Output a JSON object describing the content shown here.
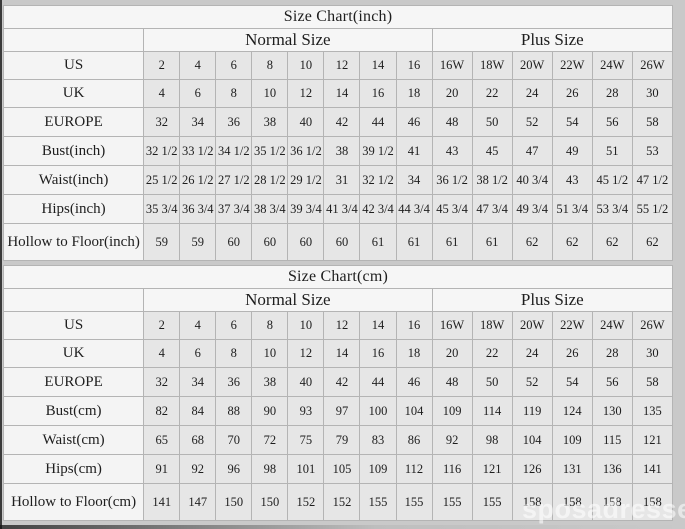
{
  "page": {
    "background": "#c9c9c9",
    "table_colors": {
      "header_bg": "#f6f6f6",
      "label_bg": "#f4f4f4",
      "value_bg": "#e6e6e6",
      "border": "#b4b4b4",
      "text": "#1e1e1e"
    },
    "watermark": "sposadresses"
  },
  "chart_data": [
    {
      "type": "table",
      "title": "Size Chart(inch)",
      "group_headers": [
        {
          "label": "Normal Size",
          "span": 8
        },
        {
          "label": "Plus Size",
          "span": 6
        }
      ],
      "rows": [
        {
          "label": "US",
          "values": [
            "2",
            "4",
            "6",
            "8",
            "10",
            "12",
            "14",
            "16",
            "16W",
            "18W",
            "20W",
            "22W",
            "24W",
            "26W"
          ]
        },
        {
          "label": "UK",
          "values": [
            "4",
            "6",
            "8",
            "10",
            "12",
            "14",
            "16",
            "18",
            "20",
            "22",
            "24",
            "26",
            "28",
            "30"
          ]
        },
        {
          "label": "EUROPE",
          "values": [
            "32",
            "34",
            "36",
            "38",
            "40",
            "42",
            "44",
            "46",
            "48",
            "50",
            "52",
            "54",
            "56",
            "58"
          ]
        },
        {
          "label": "Bust(inch)",
          "values": [
            "32 1/2",
            "33 1/2",
            "34 1/2",
            "35 1/2",
            "36 1/2",
            "38",
            "39 1/2",
            "41",
            "43",
            "45",
            "47",
            "49",
            "51",
            "53"
          ]
        },
        {
          "label": "Waist(inch)",
          "values": [
            "25 1/2",
            "26 1/2",
            "27 1/2",
            "28 1/2",
            "29 1/2",
            "31",
            "32 1/2",
            "34",
            "36 1/2",
            "38 1/2",
            "40 3/4",
            "43",
            "45 1/2",
            "47 1/2"
          ]
        },
        {
          "label": "Hips(inch)",
          "values": [
            "35 3/4",
            "36 3/4",
            "37 3/4",
            "38 3/4",
            "39 3/4",
            "41 3/4",
            "42 3/4",
            "44 3/4",
            "45 3/4",
            "47 3/4",
            "49 3/4",
            "51 3/4",
            "53 3/4",
            "55 1/2"
          ]
        },
        {
          "label": "Hollow to Floor(inch)",
          "values": [
            "59",
            "59",
            "60",
            "60",
            "60",
            "60",
            "61",
            "61",
            "61",
            "61",
            "62",
            "62",
            "62",
            "62"
          ]
        }
      ]
    },
    {
      "type": "table",
      "title": "Size Chart(cm)",
      "group_headers": [
        {
          "label": "Normal Size",
          "span": 8
        },
        {
          "label": "Plus Size",
          "span": 6
        }
      ],
      "rows": [
        {
          "label": "US",
          "values": [
            "2",
            "4",
            "6",
            "8",
            "10",
            "12",
            "14",
            "16",
            "16W",
            "18W",
            "20W",
            "22W",
            "24W",
            "26W"
          ]
        },
        {
          "label": "UK",
          "values": [
            "4",
            "6",
            "8",
            "10",
            "12",
            "14",
            "16",
            "18",
            "20",
            "22",
            "24",
            "26",
            "28",
            "30"
          ]
        },
        {
          "label": "EUROPE",
          "values": [
            "32",
            "34",
            "36",
            "38",
            "40",
            "42",
            "44",
            "46",
            "48",
            "50",
            "52",
            "54",
            "56",
            "58"
          ]
        },
        {
          "label": "Bust(cm)",
          "values": [
            "82",
            "84",
            "88",
            "90",
            "93",
            "97",
            "100",
            "104",
            "109",
            "114",
            "119",
            "124",
            "130",
            "135"
          ]
        },
        {
          "label": "Waist(cm)",
          "values": [
            "65",
            "68",
            "70",
            "72",
            "75",
            "79",
            "83",
            "86",
            "92",
            "98",
            "104",
            "109",
            "115",
            "121"
          ]
        },
        {
          "label": "Hips(cm)",
          "values": [
            "91",
            "92",
            "96",
            "98",
            "101",
            "105",
            "109",
            "112",
            "116",
            "121",
            "126",
            "131",
            "136",
            "141"
          ]
        },
        {
          "label": "Hollow to Floor(cm)",
          "values": [
            "141",
            "147",
            "150",
            "150",
            "152",
            "152",
            "155",
            "155",
            "155",
            "155",
            "158",
            "158",
            "158",
            "158"
          ]
        }
      ]
    }
  ]
}
